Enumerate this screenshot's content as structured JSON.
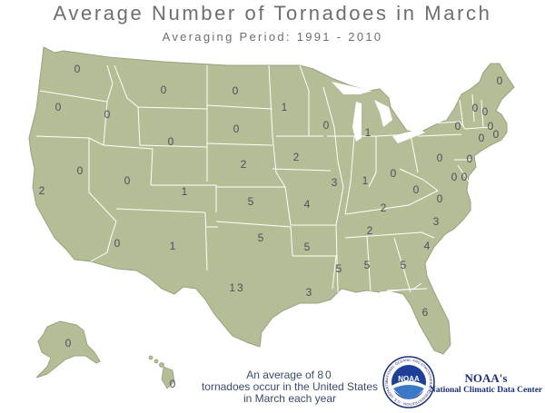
{
  "title": "Average Number of Tornadoes in March",
  "subtitle": "Averaging Period:  1991 - 2010",
  "colors": {
    "land": "#b4bd96",
    "border": "#ffffff",
    "text": "#4a5060"
  },
  "map_values": {
    "WA": "0",
    "OR": "0",
    "CA": "2",
    "ID": "0",
    "NV": "0",
    "UT": "0",
    "AZ": "0",
    "MT": "0",
    "WY": "0",
    "CO": "1",
    "NM": "1",
    "ND": "0",
    "SD": "0",
    "NE": "2",
    "KS": "5",
    "OK": "5",
    "TX": "13",
    "MN": "1",
    "IA": "2",
    "MO": "4",
    "AR": "5",
    "LA": "3",
    "WI": "0",
    "IL": "3",
    "MS": "5",
    "MI": "1",
    "IN": "1",
    "KY": "2",
    "TN": "2",
    "AL": "5",
    "GA": "5",
    "FL": "6",
    "OH": "0",
    "WV": "0",
    "VA": "0",
    "NC": "3",
    "SC": "4",
    "PA": "0",
    "NY": "0",
    "ME": "0",
    "VT": "0",
    "NH": "0",
    "MA": "0",
    "RI": "0",
    "CT": "0",
    "NJ": "0",
    "DE": "0",
    "MD": "0",
    "AK": "0",
    "HI": "0"
  },
  "footer": {
    "line1_pre": "An average of ",
    "total": "80",
    "line2": "tornadoes occur in the United States",
    "line3": "in March each year"
  },
  "org": {
    "name": "NOAA's",
    "center": "National Climatic Data Center"
  },
  "logo": {
    "text": "NOAA",
    "ring_text": "NATIONAL OCEANIC AND ATMOSPHERIC ADMINISTRATION · U.S. DEPARTMENT OF COMMERCE"
  }
}
